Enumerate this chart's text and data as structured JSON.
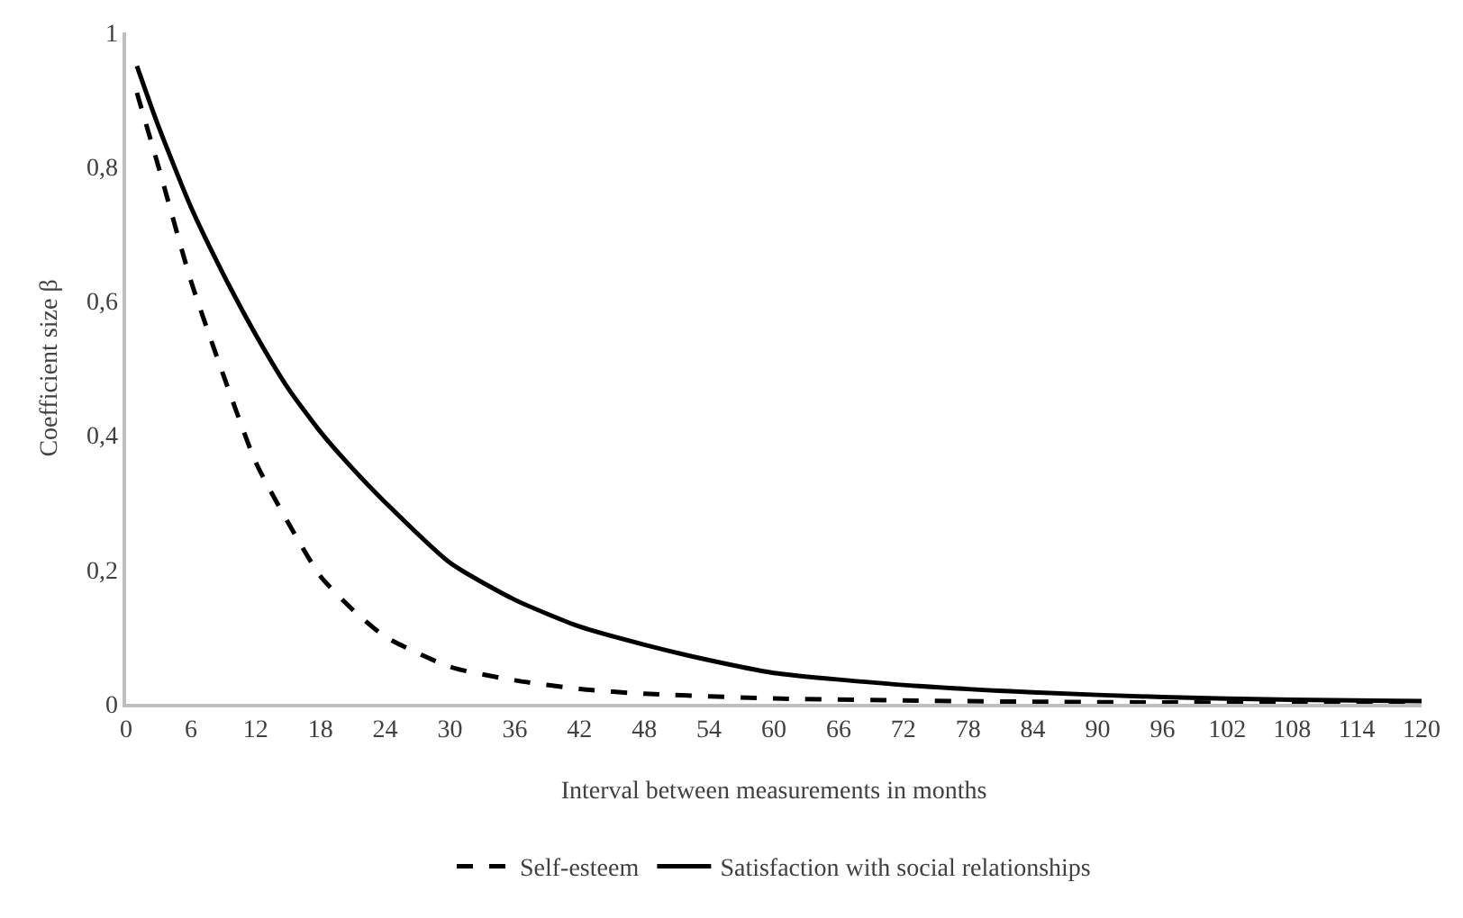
{
  "chart_data": {
    "type": "line",
    "xlabel": "Interval between measurements in months",
    "ylabel": "Coefficient size β",
    "xlim": [
      0,
      120
    ],
    "xticks": [
      0,
      6,
      12,
      18,
      24,
      30,
      36,
      42,
      48,
      54,
      60,
      66,
      72,
      78,
      84,
      90,
      96,
      102,
      108,
      114,
      120
    ],
    "ylim": [
      0,
      1
    ],
    "yticks": [
      {
        "value": 0,
        "label": "0"
      },
      {
        "value": 0.2,
        "label": "0,2"
      },
      {
        "value": 0.4,
        "label": "0,4"
      },
      {
        "value": 0.6,
        "label": "0,6"
      },
      {
        "value": 0.8,
        "label": "0,8"
      },
      {
        "value": 1,
        "label": "1"
      }
    ],
    "grid": false,
    "legend": "bottom",
    "marker": "none",
    "series": [
      {
        "name": "Self-esteem",
        "color": "#000000",
        "line_style": "dashed",
        "x": [
          1,
          3,
          6,
          9,
          12,
          15,
          18,
          21,
          24,
          30,
          36,
          42,
          48,
          60,
          72,
          84,
          96,
          108,
          120
        ],
        "values": [
          0.91,
          0.8,
          0.63,
          0.49,
          0.36,
          0.27,
          0.19,
          0.14,
          0.1,
          0.055,
          0.035,
          0.022,
          0.015,
          0.008,
          0.005,
          0.003,
          0.002,
          0.0015,
          0.001
        ]
      },
      {
        "name": "Satisfaction with social relationships",
        "color": "#000000",
        "line_style": "solid",
        "x": [
          1,
          3,
          6,
          9,
          12,
          15,
          18,
          21,
          24,
          30,
          36,
          42,
          48,
          54,
          60,
          72,
          84,
          96,
          108,
          120
        ],
        "values": [
          0.95,
          0.86,
          0.74,
          0.64,
          0.55,
          0.47,
          0.405,
          0.35,
          0.3,
          0.21,
          0.155,
          0.115,
          0.088,
          0.065,
          0.046,
          0.028,
          0.017,
          0.01,
          0.006,
          0.004
        ]
      }
    ]
  }
}
